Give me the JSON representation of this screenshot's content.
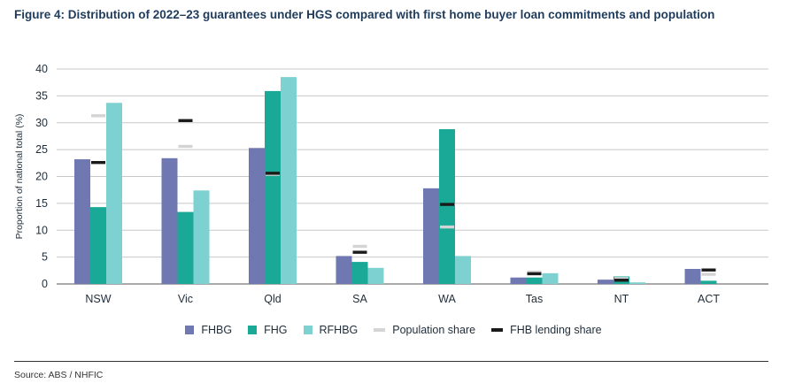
{
  "title": "Figure 4: Distribution of 2022–23 guarantees under HGS compared with first home buyer loan commitments and population",
  "source": "Source: ABS / NHFIC",
  "chart_data": {
    "type": "bar",
    "ylabel": "Proportion of national total (%)",
    "xlabel": "",
    "ylim": [
      0,
      40
    ],
    "yticks": [
      0,
      5,
      10,
      15,
      20,
      25,
      30,
      35,
      40
    ],
    "grid": true,
    "legend_position": "bottom",
    "categories": [
      "NSW",
      "Vic",
      "Qld",
      "SA",
      "WA",
      "Tas",
      "NT",
      "ACT"
    ],
    "series": [
      {
        "name": "FHBG",
        "color": "#6f78b0",
        "values": [
          23.2,
          23.4,
          25.3,
          5.2,
          17.8,
          1.2,
          0.8,
          2.8
        ]
      },
      {
        "name": "FHG",
        "color": "#1aa997",
        "values": [
          14.3,
          13.4,
          35.9,
          4.1,
          28.8,
          1.2,
          1.4,
          0.6
        ]
      },
      {
        "name": "RFHBG",
        "color": "#7ed1d1",
        "values": [
          33.7,
          17.4,
          38.5,
          3.0,
          5.2,
          2.0,
          0.3,
          0.0
        ]
      }
    ],
    "markers": [
      {
        "name": "Population share",
        "color": "#d4d4d4",
        "values": [
          31.3,
          25.6,
          20.4,
          7.0,
          10.6,
          2.2,
          1.0,
          1.8
        ]
      },
      {
        "name": "FHB lending share",
        "color": "#1a1a1a",
        "values": [
          22.6,
          30.4,
          20.6,
          5.9,
          14.8,
          1.9,
          0.7,
          2.6
        ]
      }
    ]
  }
}
